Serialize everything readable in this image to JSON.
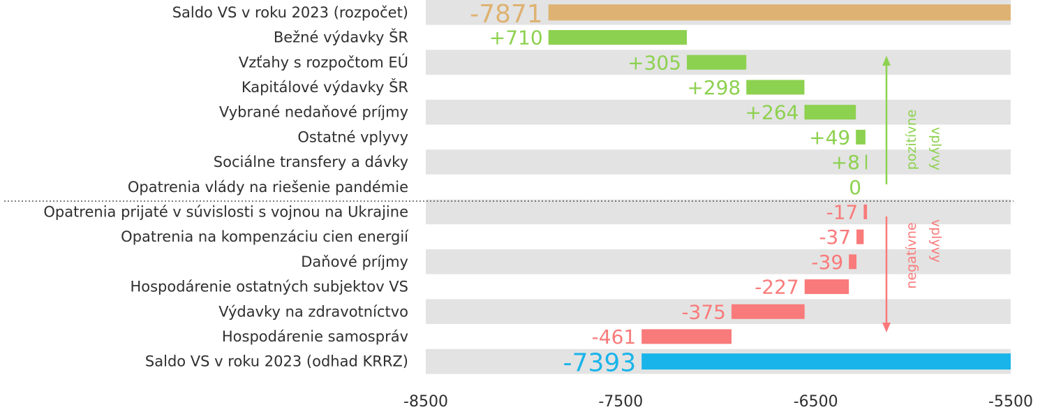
{
  "colors": {
    "start": "#deb272",
    "positive": "#8dd150",
    "negative": "#f97a7a",
    "end": "#19b4ea",
    "band": "#e3e3e3",
    "divider": "#555555"
  },
  "annotations": {
    "positive_line1": "pozitívne",
    "positive_line2": "vplyvy",
    "negative_line1": "negatívne",
    "negative_line2": "vplyvy"
  },
  "chart_data": {
    "type": "bar",
    "subtype": "waterfall",
    "orientation": "horizontal",
    "x_ticks": [
      -8500,
      -7500,
      -6500,
      -5500
    ],
    "xlim": [
      -8500,
      -5500
    ],
    "divider_after_index": 7,
    "categories": [
      "Saldo VS v roku 2023 (rozpočet)",
      "Bežné výdavky ŠR",
      "Vzťahy s rozpočtom EÚ",
      "Kapitálové výdavky ŠR",
      "Vybrané nedaňové príjmy",
      "Ostatné vplyvy",
      "Sociálne transfery a dávky",
      "Opatrenia vlády na riešenie pandémie",
      "Opatrenia prijaté v súvislosti s vojnou na Ukrajine",
      "Opatrenia na kompenzáciu cien energií",
      "Daňové príjmy",
      "Hospodárenie ostatných subjektov VS",
      "Výdavky na zdravotníctvo",
      "Hospodárenie samospráv",
      "Saldo VS v roku 2023 (odhad KRRZ)"
    ],
    "values": [
      -7871,
      710,
      305,
      298,
      264,
      49,
      8,
      0,
      -17,
      -37,
      -39,
      -227,
      -375,
      -461,
      -7393
    ],
    "value_labels": [
      "-7871",
      "+710",
      "+305",
      "+298",
      "+264",
      "+49",
      "+8",
      "0",
      "-17",
      "-37",
      "-39",
      "-227",
      "-375",
      "-461",
      "-7393"
    ],
    "kinds": [
      "start",
      "positive",
      "positive",
      "positive",
      "positive",
      "positive",
      "positive",
      "positive",
      "negative",
      "negative",
      "negative",
      "negative",
      "negative",
      "negative",
      "end"
    ]
  }
}
